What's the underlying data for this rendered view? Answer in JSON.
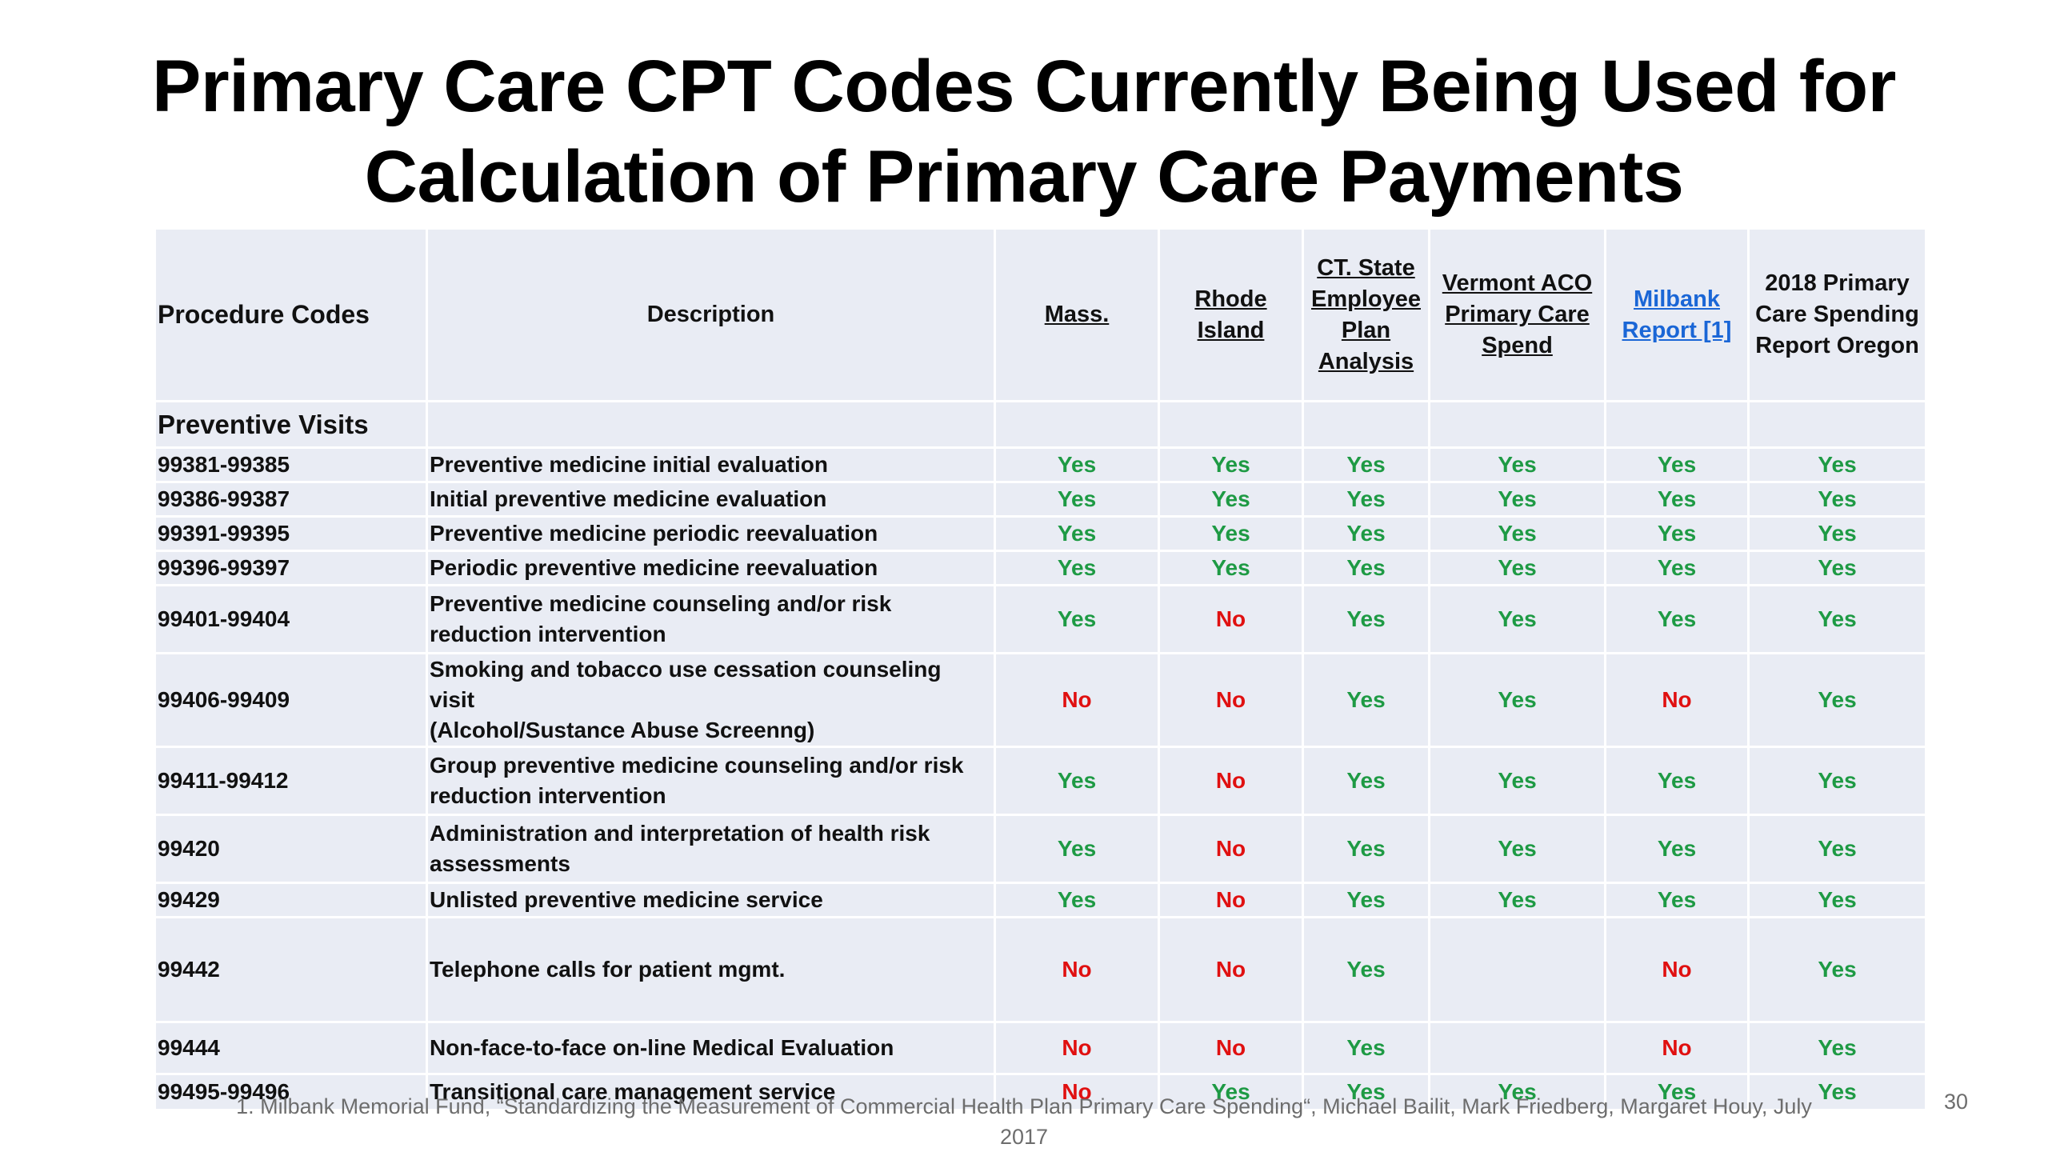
{
  "title": {
    "line1": "Primary Care CPT Codes Currently Being Used for",
    "line2": "Calculation of Primary Care Payments"
  },
  "table": {
    "headers": {
      "procedure_codes": "Procedure Codes",
      "description": "Description",
      "mass": "Mass.",
      "rhode_island": "Rhode Island",
      "ct_state": [
        "CT. State",
        "Employee",
        "Plan",
        "Analysis"
      ],
      "vermont": [
        "Vermont ACO",
        "Primary Care",
        "Spend"
      ],
      "milbank": [
        "Milbank",
        "Report [1]"
      ],
      "oregon": [
        "2018 Primary",
        "Care Spending",
        "Report Oregon"
      ]
    },
    "section_label": "Preventive Visits",
    "rows": [
      {
        "code": "99381-99385",
        "desc": [
          "Preventive medicine initial evaluation"
        ],
        "mass": "Yes",
        "ri": "Yes",
        "ct": "Yes",
        "vt": "Yes",
        "milbank": "Yes",
        "oregon": "Yes"
      },
      {
        "code": "99386-99387",
        "desc": [
          "Initial preventive medicine evaluation"
        ],
        "mass": "Yes",
        "ri": "Yes",
        "ct": "Yes",
        "vt": "Yes",
        "milbank": "Yes",
        "oregon": "Yes"
      },
      {
        "code": "99391-99395",
        "desc": [
          "Preventive medicine periodic reevaluation"
        ],
        "mass": "Yes",
        "ri": "Yes",
        "ct": "Yes",
        "vt": "Yes",
        "milbank": "Yes",
        "oregon": "Yes"
      },
      {
        "code": "99396-99397",
        "desc": [
          "Periodic preventive medicine reevaluation"
        ],
        "mass": "Yes",
        "ri": "Yes",
        "ct": "Yes",
        "vt": "Yes",
        "milbank": "Yes",
        "oregon": "Yes"
      },
      {
        "code": "99401-99404",
        "desc": [
          "Preventive medicine counseling and/or risk",
          "reduction intervention"
        ],
        "mass": "Yes",
        "ri": "No",
        "ct": "Yes",
        "vt": "Yes",
        "milbank": "Yes",
        "oregon": "Yes"
      },
      {
        "code": "99406-99409",
        "desc": [
          "Smoking and tobacco use cessation counseling visit",
          "(Alcohol/Sustance Abuse Screenng)"
        ],
        "mass": "No",
        "ri": "No",
        "ct": "Yes",
        "vt": "Yes",
        "milbank": "No",
        "oregon": "Yes"
      },
      {
        "code": "99411-99412",
        "desc": [
          "Group preventive medicine counseling and/or risk",
          "reduction intervention"
        ],
        "mass": "Yes",
        "ri": "No",
        "ct": "Yes",
        "vt": "Yes",
        "milbank": "Yes",
        "oregon": "Yes"
      },
      {
        "code": "99420",
        "desc": [
          "Administration and interpretation of health risk",
          "assessments"
        ],
        "mass": "Yes",
        "ri": "No",
        "ct": "Yes",
        "vt": "Yes",
        "milbank": "Yes",
        "oregon": "Yes"
      },
      {
        "code": "99429",
        "desc": [
          "Unlisted preventive medicine service"
        ],
        "mass": "Yes",
        "ri": "No",
        "ct": "Yes",
        "vt": "Yes",
        "milbank": "Yes",
        "oregon": "Yes"
      },
      {
        "code": "99442",
        "desc": [
          "Telephone calls for patient mgmt."
        ],
        "mass": "No",
        "ri": "No",
        "ct": "Yes",
        "vt": "",
        "milbank": "No",
        "oregon": "Yes"
      },
      {
        "code": "99444",
        "desc": [
          "Non-face-to-face on-line Medical Evaluation"
        ],
        "mass": "No",
        "ri": "No",
        "ct": "Yes",
        "vt": "",
        "milbank": "No",
        "oregon": "Yes"
      },
      {
        "code": "99495-99496",
        "desc": [
          "Transitional care management service"
        ],
        "mass": "No",
        "ri": "Yes",
        "ct": "Yes",
        "vt": "Yes",
        "milbank": "Yes",
        "oregon": "Yes"
      }
    ]
  },
  "footnote": {
    "line1": "1. Milbank Memorial Fund, “Standardizing the Measurement of Commercial Health Plan Primary Care Spending“, Michael Bailit, Mark Friedberg, Margaret Houy, July",
    "line2": "2017"
  },
  "page_number": "30",
  "colors": {
    "yes": "#1e9a44",
    "no": "#e01010",
    "cell_bg": "#e9ecf4",
    "link": "#1a66d6"
  }
}
